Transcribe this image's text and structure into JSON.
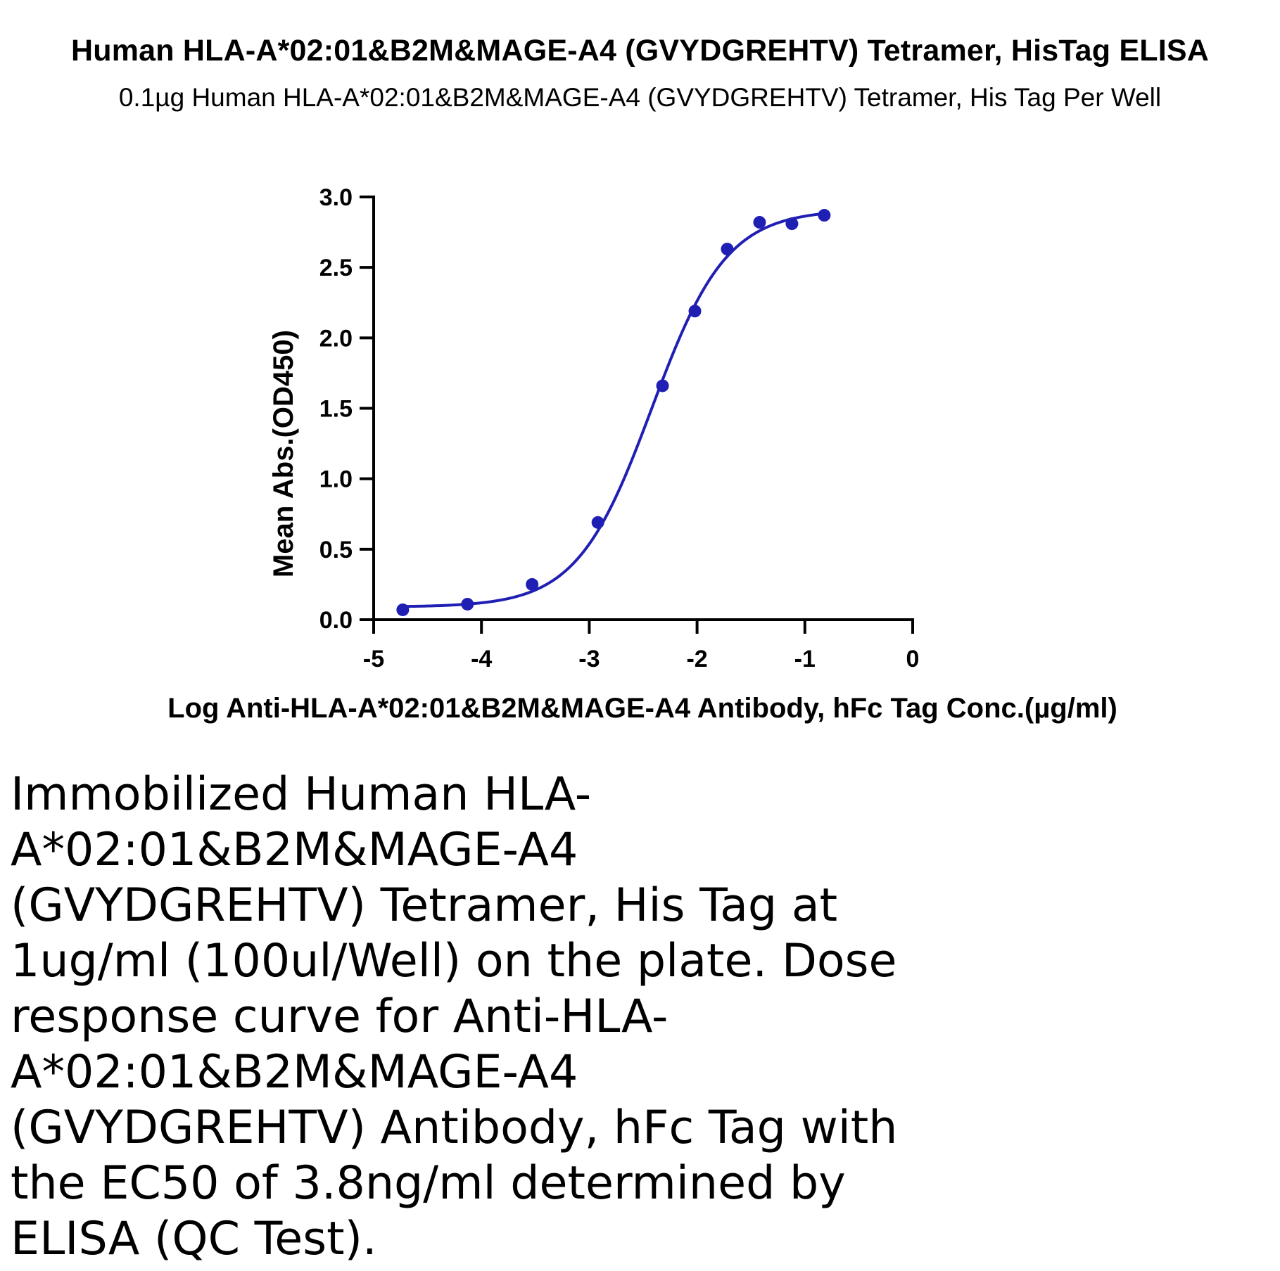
{
  "title": "Human HLA-A*02:01&B2M&MAGE-A4 (GVYDGREHTV) Tetramer, HisTag ELISA",
  "subtitle": "0.1µg Human HLA-A*02:01&B2M&MAGE-A4 (GVYDGREHTV) Tetramer, His Tag Per Well",
  "caption": "Immobilized Human HLA-A*02:01&B2M&MAGE-A4 (GVYDGREHTV) Tetramer, His Tag at 1ug/ml (100ul/Well) on the plate. Dose response curve for Anti-HLA-A*02:01&B2M&MAGE-A4 (GVYDGREHTV) Antibody, hFc Tag with the EC50 of 3.8ng/ml determined by ELISA (QC Test).",
  "chart_data": {
    "type": "scatter",
    "xlabel": "Log Anti-HLA-A*02:01&B2M&MAGE-A4 Antibody, hFc Tag Conc.(µg/ml)",
    "ylabel": "Mean Abs.(OD450)",
    "xlim": [
      -5,
      0
    ],
    "ylim": [
      0,
      3
    ],
    "x_ticks": [
      "-5",
      "-4",
      "-3",
      "-2",
      "-1",
      "0"
    ],
    "y_ticks": [
      "0.0",
      "0.5",
      "1.0",
      "1.5",
      "2.0",
      "2.5",
      "3.0"
    ],
    "grid": false,
    "color": "#1f1fb4",
    "series": [
      {
        "x": [
          -4.73,
          -4.13,
          -3.53,
          -2.92,
          -2.32,
          -2.02,
          -1.72,
          -1.42,
          -1.12,
          -0.82
        ],
        "y": [
          0.07,
          0.11,
          0.25,
          0.69,
          1.66,
          2.19,
          2.63,
          2.82,
          2.81,
          2.87
        ]
      }
    ],
    "fit_curve": {
      "model": "4PL",
      "bottom": 0.09,
      "top": 2.91,
      "log_ec50": -2.42,
      "hill": 1.25,
      "x_range": [
        -4.73,
        -0.82
      ]
    }
  }
}
